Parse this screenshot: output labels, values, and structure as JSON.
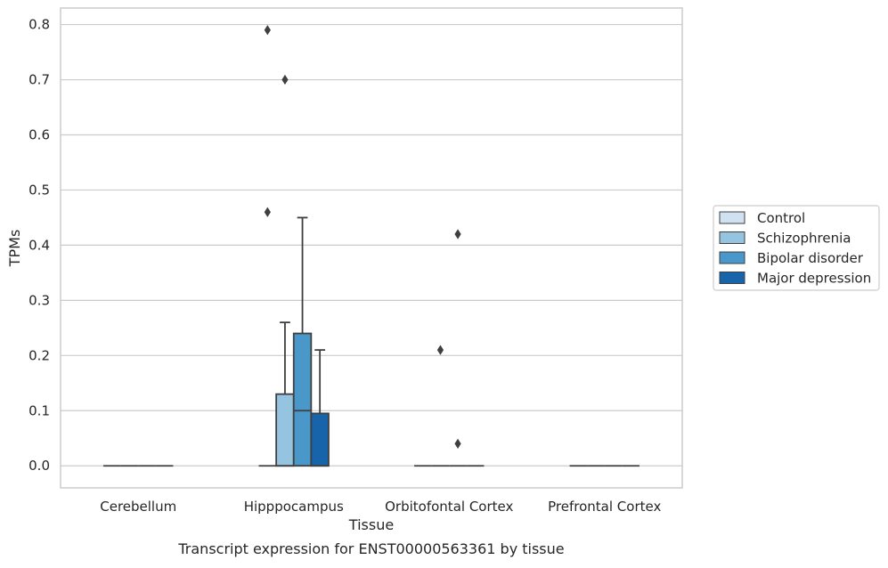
{
  "chart_data": {
    "type": "box",
    "title": "",
    "caption": "Transcript expression for ENST00000563361 by tissue",
    "xlabel": "Tissue",
    "ylabel": "TPMs",
    "ylim": [
      -0.04,
      0.83
    ],
    "yticks": [
      "0.0",
      "0.1",
      "0.2",
      "0.3",
      "0.4",
      "0.5",
      "0.6",
      "0.7",
      "0.8"
    ],
    "categories": [
      "Cerebellum",
      "Hipppocampus",
      "Orbitofontal Cortex",
      "Prefrontal Cortex"
    ],
    "grid": true,
    "legend_position": "right",
    "series": [
      {
        "name": "Control",
        "color": "#d0e1f2",
        "boxes": [
          {
            "q1": 0,
            "median": 0,
            "q3": 0,
            "whisker_low": 0,
            "whisker_high": 0,
            "outliers": []
          },
          {
            "q1": 0,
            "median": 0,
            "q3": 0,
            "whisker_low": 0,
            "whisker_high": 0,
            "outliers": [
              0.46,
              0.79
            ]
          },
          {
            "q1": 0,
            "median": 0,
            "q3": 0,
            "whisker_low": 0,
            "whisker_high": 0,
            "outliers": []
          },
          {
            "q1": 0,
            "median": 0,
            "q3": 0,
            "whisker_low": 0,
            "whisker_high": 0,
            "outliers": []
          }
        ]
      },
      {
        "name": "Schizophrenia",
        "color": "#94c4df",
        "boxes": [
          {
            "q1": 0,
            "median": 0,
            "q3": 0,
            "whisker_low": 0,
            "whisker_high": 0,
            "outliers": []
          },
          {
            "q1": 0,
            "median": 0,
            "q3": 0.13,
            "whisker_low": 0,
            "whisker_high": 0.26,
            "outliers": [
              0.7
            ]
          },
          {
            "q1": 0,
            "median": 0,
            "q3": 0,
            "whisker_low": 0,
            "whisker_high": 0,
            "outliers": [
              0.21
            ]
          },
          {
            "q1": 0,
            "median": 0,
            "q3": 0,
            "whisker_low": 0,
            "whisker_high": 0,
            "outliers": []
          }
        ]
      },
      {
        "name": "Bipolar disorder",
        "color": "#4a98c9",
        "boxes": [
          {
            "q1": 0,
            "median": 0,
            "q3": 0,
            "whisker_low": 0,
            "whisker_high": 0,
            "outliers": []
          },
          {
            "q1": 0,
            "median": 0.1,
            "q3": 0.24,
            "whisker_low": 0,
            "whisker_high": 0.45,
            "outliers": []
          },
          {
            "q1": 0,
            "median": 0,
            "q3": 0,
            "whisker_low": 0,
            "whisker_high": 0,
            "outliers": [
              0.04,
              0.42
            ]
          },
          {
            "q1": 0,
            "median": 0,
            "q3": 0,
            "whisker_low": 0,
            "whisker_high": 0,
            "outliers": []
          }
        ]
      },
      {
        "name": "Major depression",
        "color": "#1764ab",
        "boxes": [
          {
            "q1": 0,
            "median": 0,
            "q3": 0,
            "whisker_low": 0,
            "whisker_high": 0,
            "outliers": []
          },
          {
            "q1": 0,
            "median": 0,
            "q3": 0.095,
            "whisker_low": 0,
            "whisker_high": 0.21,
            "outliers": []
          },
          {
            "q1": 0,
            "median": 0,
            "q3": 0,
            "whisker_low": 0,
            "whisker_high": 0,
            "outliers": []
          },
          {
            "q1": 0,
            "median": 0,
            "q3": 0,
            "whisker_low": 0,
            "whisker_high": 0,
            "outliers": []
          }
        ]
      }
    ]
  }
}
